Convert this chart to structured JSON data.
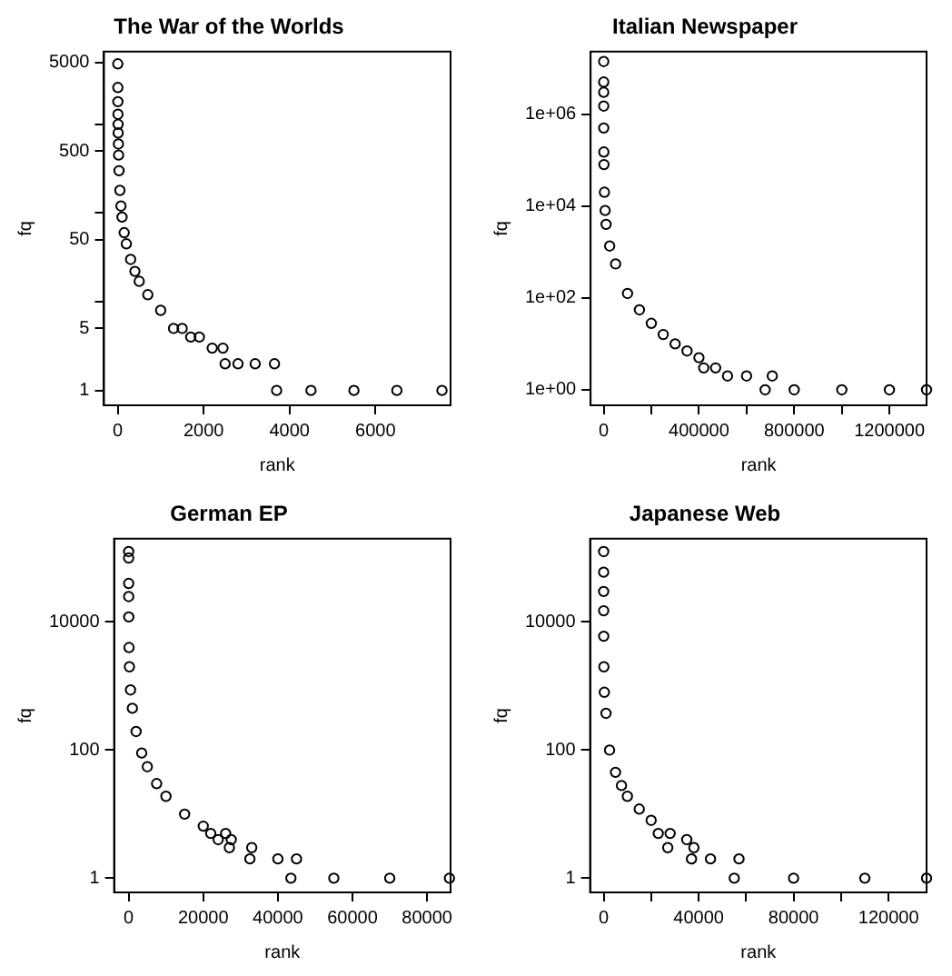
{
  "chart_data": [
    {
      "type": "scatter",
      "title": "The War of the Worlds",
      "xlabel": "rank",
      "ylabel": "fq",
      "log": "y",
      "grid": false,
      "legend": false,
      "marker": "circle",
      "xlim": [
        -320,
        7750
      ],
      "xticks": [
        0,
        2000,
        4000,
        6000
      ],
      "ylim": [
        0.68,
        6600
      ],
      "yticks": [
        1,
        5,
        {
          "value": 10,
          "label": null
        },
        50,
        {
          "value": 100,
          "label": null
        },
        500,
        {
          "value": 1000,
          "label": null
        },
        5000
      ],
      "series": [
        {
          "color": "#000000",
          "x": [
            1,
            2,
            3,
            5,
            8,
            10,
            15,
            20,
            30,
            50,
            75,
            100,
            150,
            200,
            300,
            400,
            500,
            700,
            1000,
            1300,
            1500,
            1700,
            1900,
            2200,
            2450,
            2500,
            2800,
            3200,
            3650,
            3700,
            4500,
            5500,
            6500,
            7550
          ],
          "values": [
            4800,
            2600,
            1800,
            1300,
            1000,
            800,
            600,
            450,
            300,
            180,
            120,
            90,
            60,
            45,
            30,
            22,
            17,
            12,
            8,
            5,
            5,
            4,
            4,
            3,
            3,
            2,
            2,
            2,
            2,
            1,
            1,
            1,
            1,
            1
          ]
        }
      ]
    },
    {
      "type": "scatter",
      "title": "Italian Newspaper",
      "xlabel": "rank",
      "ylabel": "fq",
      "log": "y",
      "grid": false,
      "legend": false,
      "marker": "circle",
      "xlim": [
        -55000,
        1356000
      ],
      "xticks": [
        0,
        {
          "value": 200000,
          "label": null
        },
        400000,
        {
          "value": 600000,
          "label": null
        },
        800000,
        {
          "value": 1000000,
          "label": null
        },
        1200000
      ],
      "ylim": [
        0.46,
        23000000
      ],
      "yticks": [
        {
          "value": 1,
          "label": "1e+00"
        },
        {
          "value": 100,
          "label": "1e+02"
        },
        {
          "value": 10000,
          "label": "1e+04"
        },
        {
          "value": 1000000,
          "label": "1e+06"
        }
      ],
      "series": [
        {
          "color": "#000000",
          "x": [
            1,
            2,
            5,
            10,
            100,
            500,
            1000,
            3000,
            6000,
            10000,
            25000,
            50000,
            100000,
            150000,
            200000,
            250000,
            300000,
            350000,
            400000,
            420000,
            470000,
            520000,
            600000,
            708000,
            678000,
            800000,
            1000000,
            1200000,
            1356000
          ],
          "values": [
            14000000,
            5000000,
            3000000,
            1500000,
            500000,
            150000,
            80000,
            20000,
            8000,
            4000,
            1350,
            550,
            125,
            55,
            28,
            16,
            10,
            7,
            5,
            3,
            3,
            2,
            2,
            2,
            1,
            1,
            1,
            1,
            1
          ]
        }
      ]
    },
    {
      "type": "scatter",
      "title": "German EP",
      "xlabel": "rank",
      "ylabel": "fq",
      "log": "y",
      "grid": false,
      "legend": false,
      "marker": "circle",
      "xlim": [
        -3900,
        86300
      ],
      "xticks": [
        0,
        20000,
        40000,
        60000,
        80000
      ],
      "ylim": [
        0.6,
        200000
      ],
      "yticks": [
        1,
        100,
        10000
      ],
      "series": [
        {
          "color": "#000000",
          "x": [
            1,
            2,
            5,
            10,
            30,
            100,
            200,
            500,
            1000,
            2000,
            3500,
            5000,
            7500,
            10000,
            15000,
            20000,
            22000,
            26000,
            24000,
            27500,
            27000,
            33000,
            32500,
            40000,
            45000,
            43500,
            55000,
            70000,
            86000
          ],
          "values": [
            126000,
            100000,
            40000,
            25000,
            12000,
            4000,
            2000,
            870,
            450,
            195,
            90,
            55,
            30,
            19,
            10,
            6.5,
            5,
            5,
            4,
            4,
            3,
            3,
            2,
            2,
            2,
            1,
            1,
            1,
            1
          ]
        }
      ]
    },
    {
      "type": "scatter",
      "title": "Japanese Web",
      "xlabel": "rank",
      "ylabel": "fq",
      "log": "y",
      "grid": false,
      "legend": false,
      "marker": "circle",
      "xlim": [
        -5700,
        136000
      ],
      "xticks": [
        0,
        {
          "value": 20000,
          "label": null
        },
        40000,
        {
          "value": 60000,
          "label": null
        },
        80000,
        {
          "value": 100000,
          "label": null
        },
        120000
      ],
      "ylim": [
        0.6,
        200000
      ],
      "yticks": [
        1,
        100,
        10000
      ],
      "series": [
        {
          "color": "#000000",
          "x": [
            1,
            2,
            5,
            10,
            30,
            100,
            300,
            1000,
            2500,
            5000,
            7500,
            10000,
            15000,
            20000,
            23000,
            28000,
            35000,
            27000,
            38000,
            37000,
            45000,
            57000,
            55000,
            80000,
            110000,
            136000
          ],
          "values": [
            126000,
            60000,
            30000,
            15000,
            6000,
            2000,
            800,
            375,
            100,
            45,
            28,
            19,
            12,
            8,
            5,
            5,
            4,
            3,
            3,
            2,
            2,
            2,
            1,
            1,
            1,
            1
          ]
        }
      ]
    }
  ]
}
